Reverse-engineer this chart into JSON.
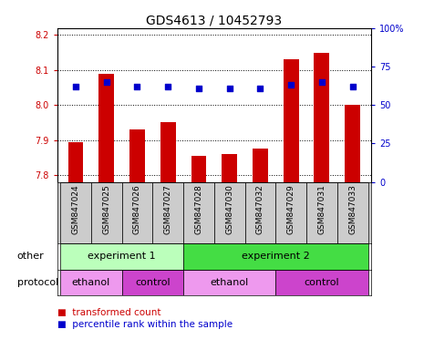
{
  "title": "GDS4613 / 10452793",
  "samples": [
    "GSM847024",
    "GSM847025",
    "GSM847026",
    "GSM847027",
    "GSM847028",
    "GSM847030",
    "GSM847032",
    "GSM847029",
    "GSM847031",
    "GSM847033"
  ],
  "transformed_count": [
    7.895,
    8.09,
    7.93,
    7.95,
    7.855,
    7.86,
    7.875,
    8.13,
    8.148,
    8.0
  ],
  "percentile_rank": [
    62,
    65,
    62,
    62,
    61,
    61,
    61,
    63,
    65,
    62
  ],
  "ylim_left": [
    7.78,
    8.22
  ],
  "ylim_right": [
    0,
    100
  ],
  "yticks_left": [
    7.8,
    7.9,
    8.0,
    8.1,
    8.2
  ],
  "yticks_right": [
    0,
    25,
    50,
    75,
    100
  ],
  "bar_color": "#cc0000",
  "dot_color": "#0000cc",
  "sample_bg": "#cccccc",
  "groups_other": [
    {
      "label": "experiment 1",
      "start": 0,
      "end": 3,
      "color": "#bbffbb"
    },
    {
      "label": "experiment 2",
      "start": 4,
      "end": 9,
      "color": "#44dd44"
    }
  ],
  "groups_protocol": [
    {
      "label": "ethanol",
      "start": 0,
      "end": 1,
      "color": "#ee99ee"
    },
    {
      "label": "control",
      "start": 2,
      "end": 3,
      "color": "#cc44cc"
    },
    {
      "label": "ethanol",
      "start": 4,
      "end": 6,
      "color": "#ee99ee"
    },
    {
      "label": "control",
      "start": 7,
      "end": 9,
      "color": "#cc44cc"
    }
  ],
  "legend_items": [
    {
      "label": "transformed count",
      "color": "#cc0000"
    },
    {
      "label": "percentile rank within the sample",
      "color": "#0000cc"
    }
  ],
  "left_axis_color": "#cc0000",
  "right_axis_color": "#0000cc"
}
